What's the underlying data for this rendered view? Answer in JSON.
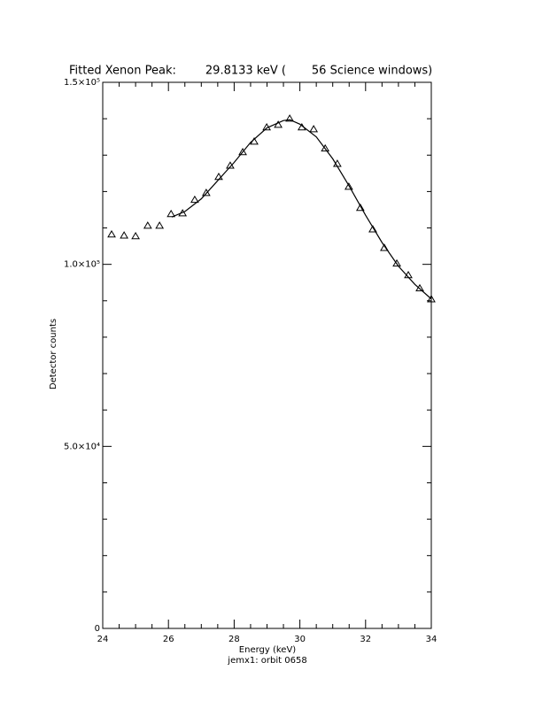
{
  "chart_data": {
    "type": "scatter",
    "title": "Fitted Xenon Peak:        29.8133 keV (       56 Science windows)",
    "x_label": "Energy (keV)",
    "subtitle": "jemx1: orbit 0658",
    "y_label": "Detector counts",
    "color": "#000000",
    "xlim": [
      24,
      34
    ],
    "ylim": [
      0,
      150000
    ],
    "xticks": [
      24,
      26,
      28,
      30,
      32,
      34
    ],
    "yticks": [
      0,
      {
        "value": 50000,
        "label": "5.0×10⁴"
      },
      {
        "value": 100000,
        "label": "1.0×10⁵"
      },
      {
        "value": 150000,
        "label": "1.5×10⁵"
      }
    ],
    "xminorticks": [
      24.5,
      25,
      25.5,
      26.5,
      27,
      27.5,
      28.5,
      29,
      29.5,
      30.5,
      31,
      31.5,
      32.5,
      33,
      33.5
    ],
    "yminorticks": [
      10000,
      20000,
      30000,
      40000,
      60000,
      70000,
      80000,
      90000,
      110000,
      120000,
      130000,
      140000
    ],
    "series": [
      {
        "marker": "triangle",
        "x": [
          24.27,
          24.65,
          25.0,
          25.37,
          25.73,
          26.08,
          26.43,
          26.8,
          27.15,
          27.53,
          27.88,
          28.26,
          28.61,
          28.99,
          29.34,
          29.69,
          30.06,
          30.42,
          30.77,
          31.14,
          31.49,
          31.84,
          32.22,
          32.57,
          32.95,
          33.3,
          33.65,
          34.0
        ],
        "values": [
          108200,
          107900,
          107700,
          110600,
          110600,
          113800,
          114000,
          117700,
          119600,
          124000,
          127100,
          130800,
          133700,
          137600,
          138300,
          140000,
          137600,
          137100,
          131800,
          127600,
          121300,
          115500,
          109600,
          104500,
          100200,
          97000,
          93400,
          90400
        ]
      },
      {
        "marker": "line",
        "x": [
          26.1,
          26.5,
          27,
          27.5,
          28,
          28.5,
          29,
          29.5,
          29.7,
          30,
          30.5,
          31,
          31.5,
          32,
          32.5,
          33,
          33.5,
          34
        ],
        "values": [
          113000,
          114500,
          118000,
          123000,
          128000,
          133500,
          137500,
          139500,
          139700,
          138500,
          135000,
          129000,
          121500,
          113500,
          106000,
          99500,
          94500,
          90500
        ]
      }
    ]
  }
}
